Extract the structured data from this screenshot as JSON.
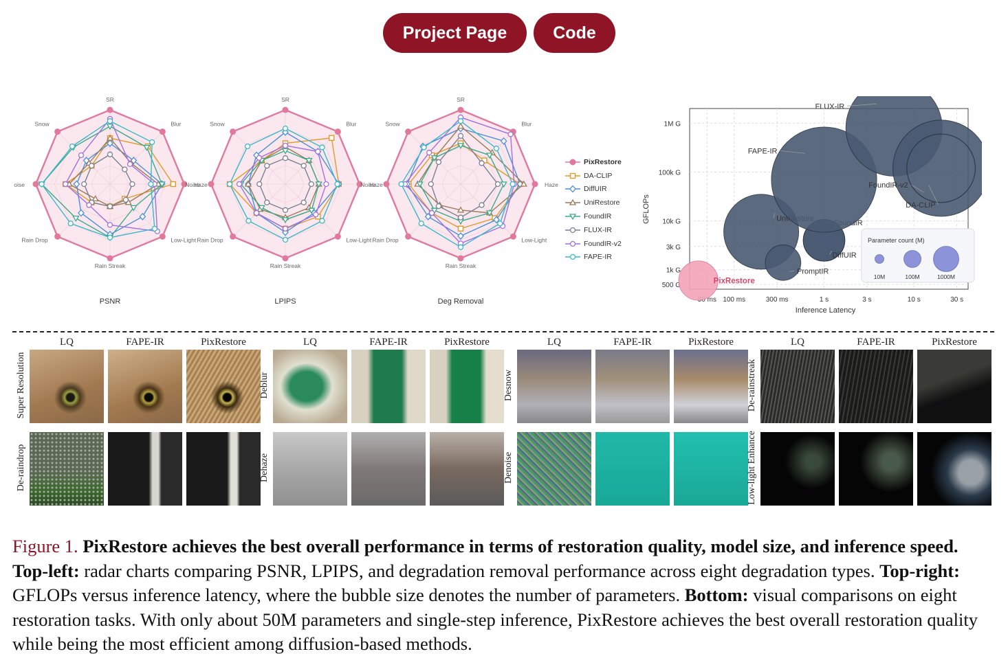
{
  "header": {
    "project_label": "Project Page",
    "code_label": "Code"
  },
  "radar": {
    "axes": [
      "SR",
      "Blur",
      "Haze",
      "Low-Light",
      "Rain Streak",
      "Rain Drop",
      "Noise",
      "Snow"
    ],
    "titles": [
      "PSNR",
      "LPIPS",
      "Deg Removal"
    ],
    "legend": [
      "PixRestore",
      "DA-CLIP",
      "DiffUIR",
      "UniRestore",
      "FoundIR",
      "FLUX-IR",
      "FoundIR-v2",
      "FAPE-IR"
    ],
    "colors": [
      "#e0799a",
      "#e09a2a",
      "#4a8fdc",
      "#9a7a5a",
      "#3aaa8a",
      "#7a7f92",
      "#a070e0",
      "#38b8c8"
    ],
    "markers": [
      "circle",
      "square",
      "diamond",
      "triangle-up",
      "triangle-down",
      "circle-open",
      "circle-open",
      "circle-open"
    ]
  },
  "chart_data": [
    {
      "type": "radar",
      "title": "PSNR",
      "categories": [
        "SR",
        "Blur",
        "Haze",
        "Low-Light",
        "Rain Streak",
        "Rain Drop",
        "Noise",
        "Snow"
      ],
      "series": [
        {
          "name": "PixRestore",
          "values": [
            1.0,
            1.0,
            1.0,
            1.0,
            1.0,
            1.0,
            1.0,
            1.0
          ]
        },
        {
          "name": "DA-CLIP",
          "values": [
            0.62,
            0.72,
            0.85,
            0.28,
            0.3,
            0.35,
            0.6,
            0.35
          ]
        },
        {
          "name": "DiffUIR",
          "values": [
            0.55,
            0.45,
            0.7,
            0.62,
            0.68,
            0.55,
            0.45,
            0.45
          ]
        },
        {
          "name": "UniRestore",
          "values": [
            0.62,
            0.4,
            0.65,
            0.35,
            0.3,
            0.28,
            0.55,
            0.4
          ]
        },
        {
          "name": "FoundIR",
          "values": [
            0.78,
            0.7,
            0.7,
            0.45,
            0.72,
            0.65,
            0.92,
            0.7
          ]
        },
        {
          "name": "FLUX-IR",
          "values": [
            0.4,
            0.28,
            0.3,
            0.3,
            0.3,
            0.35,
            0.35,
            0.35
          ]
        },
        {
          "name": "FoundIR-v2",
          "values": [
            0.88,
            0.38,
            0.6,
            0.9,
            0.55,
            0.4,
            0.6,
            0.55
          ]
        },
        {
          "name": "FAPE-IR",
          "values": [
            0.85,
            0.8,
            0.55,
            0.85,
            0.72,
            0.75,
            0.92,
            0.72
          ]
        }
      ]
    },
    {
      "type": "radar",
      "title": "LPIPS",
      "categories": [
        "SR",
        "Blur",
        "Haze",
        "Low-Light",
        "Rain Streak",
        "Rain Drop",
        "Noise",
        "Snow"
      ],
      "series": [
        {
          "name": "PixRestore",
          "values": [
            1.0,
            1.0,
            1.0,
            1.0,
            1.0,
            1.0,
            1.0,
            1.0
          ]
        },
        {
          "name": "DA-CLIP",
          "values": [
            0.55,
            0.88,
            0.72,
            0.62,
            0.6,
            0.55,
            0.75,
            0.45
          ]
        },
        {
          "name": "DiffUIR",
          "values": [
            0.7,
            0.62,
            0.72,
            0.55,
            0.65,
            0.55,
            0.5,
            0.55
          ]
        },
        {
          "name": "UniRestore",
          "values": [
            0.5,
            0.45,
            0.45,
            0.45,
            0.45,
            0.48,
            0.5,
            0.45
          ]
        },
        {
          "name": "FoundIR",
          "values": [
            0.45,
            0.45,
            0.45,
            0.5,
            0.48,
            0.45,
            0.6,
            0.45
          ]
        },
        {
          "name": "FLUX-IR",
          "values": [
            0.35,
            0.35,
            0.35,
            0.35,
            0.35,
            0.35,
            0.35,
            0.35
          ]
        },
        {
          "name": "FoundIR-v2",
          "values": [
            0.52,
            0.62,
            0.55,
            0.58,
            0.6,
            0.55,
            0.62,
            0.5
          ]
        },
        {
          "name": "FAPE-IR",
          "values": [
            0.75,
            0.7,
            0.7,
            0.7,
            0.75,
            0.7,
            0.75,
            0.72
          ]
        }
      ]
    },
    {
      "type": "radar",
      "title": "Deg Removal",
      "categories": [
        "SR",
        "Blur",
        "Haze",
        "Low-Light",
        "Rain Streak",
        "Rain Drop",
        "Noise",
        "Snow"
      ],
      "series": [
        {
          "name": "PixRestore",
          "values": [
            1.0,
            1.0,
            1.0,
            1.0,
            1.0,
            1.0,
            1.0,
            1.0
          ]
        },
        {
          "name": "DA-CLIP",
          "values": [
            0.55,
            0.45,
            0.8,
            0.65,
            0.6,
            0.55,
            0.7,
            0.55
          ]
        },
        {
          "name": "DiffUIR",
          "values": [
            0.75,
            0.82,
            0.8,
            0.68,
            0.7,
            0.62,
            0.72,
            0.72
          ]
        },
        {
          "name": "UniRestore",
          "values": [
            0.78,
            0.6,
            0.85,
            0.55,
            0.35,
            0.4,
            0.58,
            0.5
          ]
        },
        {
          "name": "FoundIR",
          "values": [
            0.52,
            0.55,
            0.58,
            0.55,
            0.5,
            0.5,
            0.55,
            0.5
          ]
        },
        {
          "name": "FLUX-IR",
          "values": [
            0.65,
            0.4,
            0.5,
            0.4,
            0.45,
            0.42,
            0.4,
            0.42
          ]
        },
        {
          "name": "FoundIR-v2",
          "values": [
            0.9,
            0.95,
            0.72,
            0.8,
            0.8,
            0.55,
            0.75,
            0.6
          ]
        },
        {
          "name": "FAPE-IR",
          "values": [
            0.85,
            0.68,
            0.7,
            0.75,
            0.85,
            0.75,
            0.8,
            0.7
          ]
        }
      ]
    },
    {
      "type": "scatter",
      "xlabel": "Inference Latency",
      "ylabel": "GFLOPs",
      "x_scale": "log",
      "y_scale": "log",
      "x_ticks": [
        "50 ms",
        "100 ms",
        "300 ms",
        "1 s",
        "3 s",
        "10 s",
        "30 s"
      ],
      "y_ticks": [
        "500 G",
        "1k G",
        "3k G",
        "10k G",
        "100k G",
        "1M G"
      ],
      "points": [
        {
          "name": "PixRestore",
          "x": 0.04,
          "y": 600,
          "params_M": 50
        },
        {
          "name": "UniRestore",
          "x": 0.2,
          "y": 6000,
          "params_M": 400
        },
        {
          "name": "PromptIR",
          "x": 0.35,
          "y": 1400,
          "params_M": 36
        },
        {
          "name": "FoundIR",
          "x": 1.0,
          "y": 4000,
          "params_M": 60
        },
        {
          "name": "DiffUIR",
          "x": 1.0,
          "y": 4000,
          "params_M": 60
        },
        {
          "name": "FAPE-IR",
          "x": 1.0,
          "y": 70000,
          "params_M": 1200
        },
        {
          "name": "FLUX-IR",
          "x": 6.0,
          "y": 800000,
          "params_M": 900
        },
        {
          "name": "FoundIR-v2",
          "x": 20.0,
          "y": 120000,
          "params_M": 900
        },
        {
          "name": "DA-CLIP",
          "x": 20.0,
          "y": 120000,
          "params_M": 300
        }
      ],
      "size_legend": {
        "title": "Parameter count (M)",
        "labels": [
          "10M",
          "100M",
          "1000M"
        ]
      }
    }
  ],
  "visual": {
    "groups": [
      {
        "columns": [
          "LQ",
          "FAPE-IR",
          "PixRestore"
        ],
        "rows": [
          "Super Resolution",
          "De-raindrop"
        ]
      },
      {
        "columns": [
          "LQ",
          "FAPE-IR",
          "PixRestore"
        ],
        "rows": [
          "Deblur",
          "Dehaze"
        ]
      },
      {
        "columns": [
          "LQ",
          "FAPE-IR",
          "PixRestore"
        ],
        "rows": [
          "Desnow",
          "Denoise"
        ]
      },
      {
        "columns": [
          "LQ",
          "FAPE-IR",
          "PixRestore"
        ],
        "rows": [
          "De-rainstreak",
          "Low-light Enhance"
        ]
      }
    ],
    "thumb_art": [
      [
        "art-sr-lq",
        "art-sr-fape",
        "art-sr-pix",
        "art-deblur-lq",
        "art-deblur-fape",
        "art-deblur-pix",
        "art-snow-lq",
        "art-snow-fape",
        "art-snow-pix",
        "art-streak-lq",
        "art-streak-fape",
        "art-streak-pix"
      ],
      [
        "art-rain-lq",
        "art-rain-fape",
        "art-rain-pix",
        "art-haze-lq",
        "art-haze-fape",
        "art-haze-pix",
        "art-noise-lq",
        "art-noise-fape",
        "art-noise-pix",
        "art-dark-lq",
        "art-dark-fape",
        "art-dark-pix"
      ]
    ]
  },
  "caption": {
    "fig": "Figure 1.",
    "bold1": "PixRestore achieves the best overall performance in terms of restoration quality, model size, and inference speed.",
    "tl_label": "Top-left:",
    "tl_text": "radar charts comparing PSNR, LPIPS, and degradation removal performance across eight degradation types.",
    "tr_label": "Top-right:",
    "tr_text": "GFLOPs versus inference latency, where the bubble size denotes the number of parameters.",
    "b_label": "Bottom:",
    "b_text": "visual comparisons on eight restoration tasks. With only about 50M parameters and single-step inference, PixRestore achieves the best overall restoration quality while being the most efficient among diffusion-based methods."
  }
}
